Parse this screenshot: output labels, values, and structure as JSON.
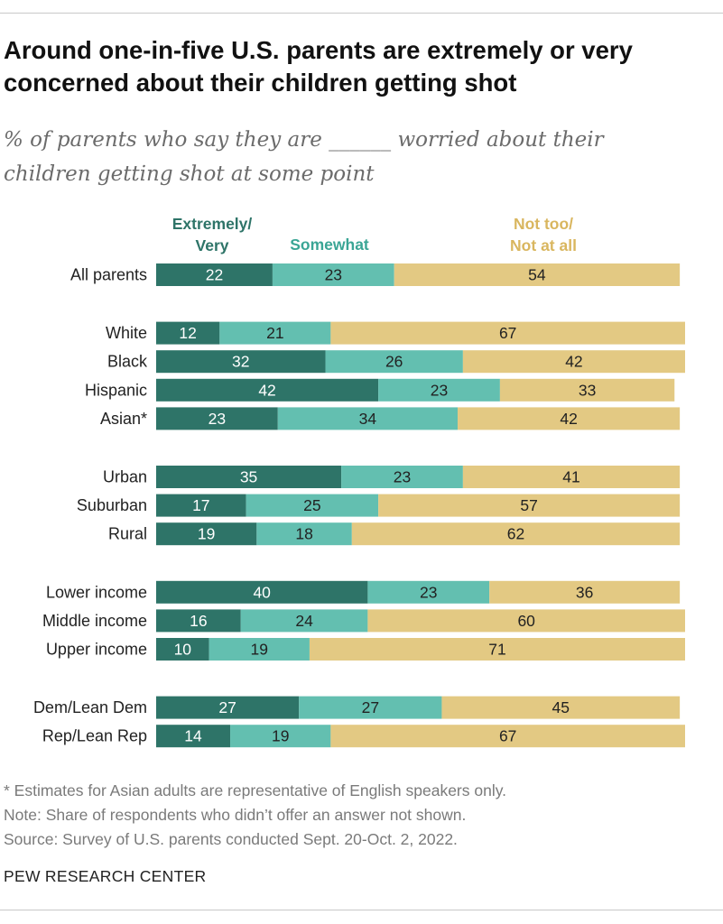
{
  "title": "Around one-in-five U.S. parents are extremely or very concerned about their children getting shot",
  "subtitle_line1": "% of parents who say they are ______ worried about their",
  "subtitle_line2": "children getting shot at some point",
  "colors": {
    "extremely": "#2e7468",
    "somewhat": "#63bfb0",
    "not": "#e3c983"
  },
  "chart_data": {
    "type": "bar",
    "orientation": "horizontal",
    "stacked": true,
    "legend": [
      {
        "key": "extremely",
        "lines": [
          "Extremely/",
          "Very"
        ],
        "color": "#2e7468"
      },
      {
        "key": "somewhat",
        "lines": [
          "Somewhat"
        ],
        "color": "#3aa595"
      },
      {
        "key": "not",
        "lines": [
          "Not too/",
          "Not at all"
        ],
        "color": "#d9b65f"
      }
    ],
    "groups": [
      [
        {
          "category": "All parents",
          "values": [
            22,
            23,
            54
          ]
        }
      ],
      [
        {
          "category": "White",
          "values": [
            12,
            21,
            67
          ]
        },
        {
          "category": "Black",
          "values": [
            32,
            26,
            42
          ]
        },
        {
          "category": "Hispanic",
          "values": [
            42,
            23,
            33
          ]
        },
        {
          "category": "Asian*",
          "values": [
            23,
            34,
            42
          ]
        }
      ],
      [
        {
          "category": "Urban",
          "values": [
            35,
            23,
            41
          ]
        },
        {
          "category": "Suburban",
          "values": [
            17,
            25,
            57
          ]
        },
        {
          "category": "Rural",
          "values": [
            19,
            18,
            62
          ]
        }
      ],
      [
        {
          "category": "Lower income",
          "values": [
            40,
            23,
            36
          ]
        },
        {
          "category": "Middle income",
          "values": [
            16,
            24,
            60
          ]
        },
        {
          "category": "Upper income",
          "values": [
            10,
            19,
            71
          ]
        }
      ],
      [
        {
          "category": "Dem/Lean Dem",
          "values": [
            27,
            27,
            45
          ]
        },
        {
          "category": "Rep/Lean Rep",
          "values": [
            14,
            19,
            67
          ]
        }
      ]
    ],
    "xlim": [
      0,
      100
    ]
  },
  "notes": {
    "asterisk": "* Estimates for Asian adults are representative of English speakers only.",
    "note": "Note: Share of respondents who didn’t offer an answer not shown.",
    "source": "Source: Survey of U.S. parents conducted Sept. 20-Oct. 2, 2022."
  },
  "brand": "PEW RESEARCH CENTER"
}
